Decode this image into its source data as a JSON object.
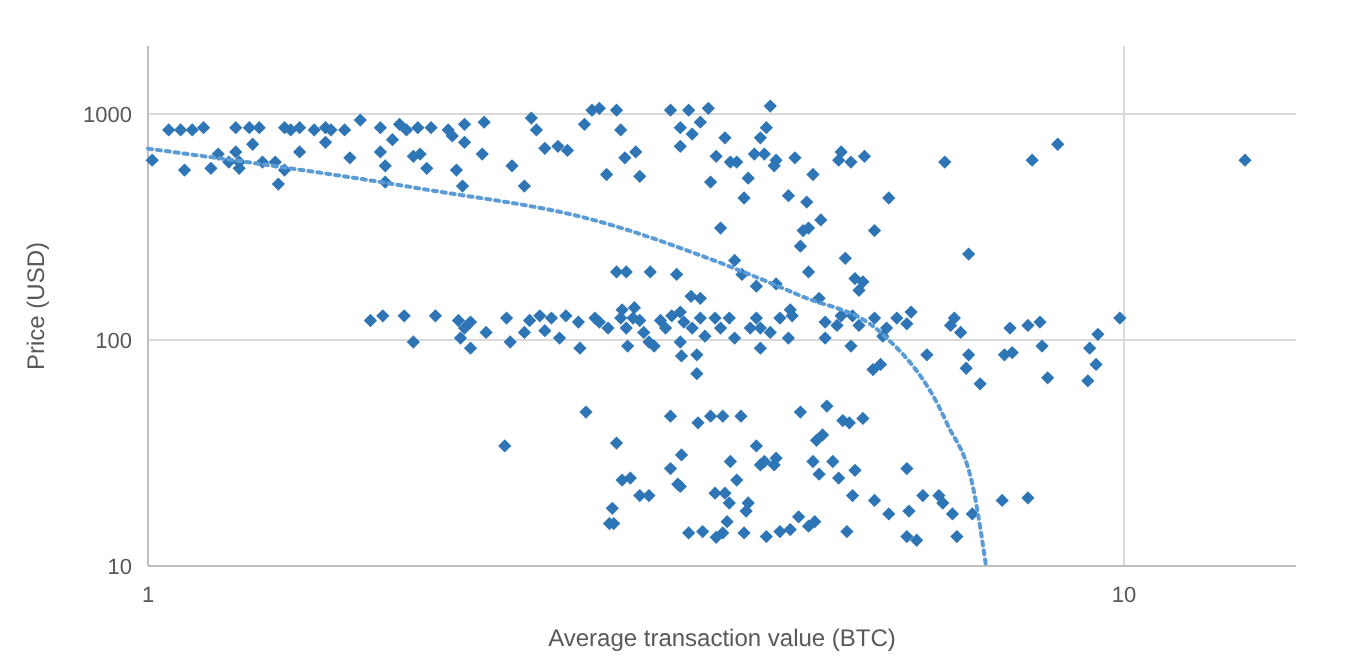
{
  "chart_data": {
    "type": "scatter",
    "xlabel": "Average transaction value (BTC)",
    "ylabel": "Price (USD)",
    "log": "xy",
    "xlim": [
      1,
      15
    ],
    "ylim": [
      10,
      2000
    ],
    "xticks": [
      1,
      10
    ],
    "yticks": [
      10,
      100,
      1000
    ],
    "grid": true,
    "marker": "diamond",
    "series": [
      {
        "color": "#2e75b6",
        "x": [
          1.01,
          1.05,
          1.08,
          1.11,
          1.14,
          1.09,
          1.16,
          1.23,
          1.18,
          1.21,
          1.24,
          1.24,
          1.23,
          1.27,
          1.28,
          1.3,
          1.31,
          1.35,
          1.36,
          1.38,
          1.38,
          1.43,
          1.43,
          1.4,
          1.48,
          1.52,
          1.52,
          1.54,
          1.59,
          1.61,
          1.65,
          1.73,
          1.73,
          1.75,
          1.75,
          1.78,
          1.81,
          1.84,
          1.87,
          1.9,
          1.89,
          1.93,
          1.95,
          2.03,
          2.05,
          2.07,
          2.11,
          2.11,
          2.1,
          2.21,
          2.2,
          2.36,
          2.43,
          2.47,
          2.5,
          2.55,
          2.63,
          2.69,
          2.8,
          2.85,
          2.9,
          2.95,
          3.05,
          3.08,
          3.16,
          3.19,
          3.43,
          3.51,
          3.51,
          3.58,
          3.61,
          3.68,
          3.75,
          3.82,
          3.86,
          3.77,
          3.95,
          4.01,
          4.08,
          4.24,
          4.12,
          4.28,
          4.34,
          4.4,
          4.3,
          4.53,
          4.6,
          4.73,
          4.75,
          4.89,
          4.8,
          5.1,
          5.13,
          5.25,
          5.42,
          5.55,
          5.74,
          6.55,
          6.93,
          8.05,
          8.55,
          13.3,
          3.02,
          3.9,
          4.18,
          4.38,
          3.27,
          3.02,
          3.09,
          3.48,
          3.6,
          3.68,
          3.99,
          4.06,
          4.2,
          4.4,
          4.69,
          4.66,
          4.55,
          4.75,
          5.35,
          4.87,
          5.18,
          5.3,
          5.4,
          5.53,
          5.63,
          1.69,
          1.74,
          1.83,
          1.87,
          1.97,
          2.08,
          2.11,
          2.14,
          2.09,
          2.14,
          2.22,
          2.33,
          2.43,
          2.35,
          2.46,
          2.52,
          2.55,
          2.59,
          2.64,
          2.68,
          2.76,
          2.77,
          2.87,
          2.9,
          2.96,
          3.05,
          3.09,
          3.1,
          3.14,
          3.19,
          3.22,
          3.26,
          3.3,
          3.35,
          3.39,
          3.44,
          3.51,
          3.54,
          3.61,
          3.68,
          3.72,
          3.65,
          3.81,
          3.86,
          3.94,
          3.99,
          4.14,
          4.2,
          4.24,
          4.34,
          4.44,
          4.53,
          3.06,
          3.15,
          3.51,
          4.24,
          4.57,
          4.94,
          5.08,
          5.25,
          4.94,
          5.13,
          5.27,
          5.35,
          5.55,
          5.66,
          5.71,
          5.85,
          6.05,
          5.99,
          6.28,
          6.64,
          6.7,
          6.8,
          6.93,
          6.89,
          7.12,
          7.64,
          7.68,
          7.54,
          7.97,
          8.2,
          8.24,
          8.35,
          9.22,
          9.36,
          9.4,
          9.9,
          9.18,
          3.52,
          3.65,
          2.81,
          2.32,
          3.02,
          3.43,
          3.52,
          3.43,
          3.49,
          3.06,
          3.12,
          3.19,
          3.26,
          2.99,
          2.97,
          3.0,
          3.58,
          3.7,
          3.82,
          3.66,
          3.77,
          3.88,
          4.05,
          4.2,
          4.28,
          4.4,
          4.38,
          3.95,
          3.51,
          3.94,
          4.1,
          4.01,
          4.84,
          4.91,
          4.66,
          4.96,
          5.15,
          5.23,
          5.4,
          4.8,
          5.03,
          4.87,
          5.1,
          5.3,
          5.27,
          4.64,
          4.75,
          3.81,
          3.9,
          3.88,
          4.08,
          4.3,
          4.44,
          4.55,
          4.82,
          5.2,
          5.99,
          5.55,
          5.74,
          6.02,
          6.22,
          6.46,
          6.52,
          6.67,
          6.99,
          6.74,
          5.99,
          6.13,
          7.5,
          7.97,
          3.92,
          4.12,
          4.24
        ],
        "values": [
          625,
          850,
          850,
          850,
          870,
          565,
          575,
          680,
          665,
          613,
          575,
          613,
          870,
          870,
          735,
          870,
          613,
          613,
          490,
          565,
          870,
          870,
          680,
          850,
          850,
          870,
          750,
          850,
          850,
          640,
          940,
          870,
          680,
          590,
          500,
          770,
          900,
          850,
          650,
          665,
          870,
          575,
          870,
          850,
          800,
          565,
          750,
          900,
          480,
          920,
          665,
          590,
          480,
          960,
          850,
          705,
          720,
          690,
          900,
          1040,
          1060,
          540,
          850,
          640,
          680,
          530,
          1040,
          870,
          720,
          1040,
          815,
          920,
          1060,
          650,
          313,
          500,
          613,
          613,
          425,
          785,
          520,
          665,
          1085,
          625,
          870,
          435,
          640,
          408,
          313,
          340,
          540,
          625,
          680,
          613,
          650,
          305,
          425,
          613,
          240,
          625,
          735,
          625,
          1040,
          785,
          665,
          590,
          200,
          200,
          200,
          195,
          156,
          153,
          225,
          195,
          173,
          177,
          305,
          260,
          136,
          200,
          166,
          153,
          230,
          187,
          181,
          74,
          78,
          122,
          128,
          128,
          98,
          128,
          122,
          113,
          120,
          102,
          92,
          108,
          125,
          108,
          98,
          122,
          128,
          110,
          125,
          102,
          128,
          120,
          92,
          125,
          120,
          113,
          125,
          113,
          94,
          125,
          122,
          108,
          98,
          94,
          122,
          113,
          128,
          98,
          120,
          113,
          125,
          104,
          86,
          125,
          113,
          125,
          102,
          113,
          125,
          92,
          108,
          125,
          102,
          136,
          139,
          133,
          113,
          128,
          102,
          116,
          94,
          120,
          128,
          128,
          116,
          125,
          104,
          113,
          125,
          133,
          118,
          86,
          116,
          125,
          108,
          86,
          75,
          64,
          113,
          88,
          86,
          116,
          120,
          94,
          68,
          92,
          78,
          106,
          125,
          66,
          85,
          71,
          48,
          34,
          35,
          46,
          31,
          27,
          23,
          24,
          24.5,
          20.5,
          20.5,
          18,
          15.4,
          15.4,
          14,
          14.2,
          13.4,
          43,
          46,
          46,
          46,
          34,
          29,
          30,
          28,
          29,
          22.5,
          19,
          17.5,
          24,
          36,
          38,
          48,
          51,
          44,
          43,
          45,
          29,
          29,
          25.5,
          24.5,
          26.5,
          20.5,
          16.5,
          15,
          21,
          21,
          14,
          14,
          13.5,
          14.2,
          14.5,
          15.7,
          14.2,
          27,
          19.5,
          17,
          17.5,
          20.5,
          20.5,
          19,
          17,
          17,
          13.5,
          13.5,
          13,
          19.5,
          20,
          15.7,
          19,
          28
        ]
      },
      {
        "type": "line",
        "color": "#5b9bd5",
        "line_style": "dotted",
        "marker": "none",
        "x": [
          1,
          1.9,
          2.91,
          3.68,
          4.66,
          5.63,
          6.58,
          7.03,
          7.22
        ],
        "values": [
          703,
          468,
          333,
          237,
          157,
          108,
          43,
          20.5,
          10
        ]
      }
    ]
  }
}
